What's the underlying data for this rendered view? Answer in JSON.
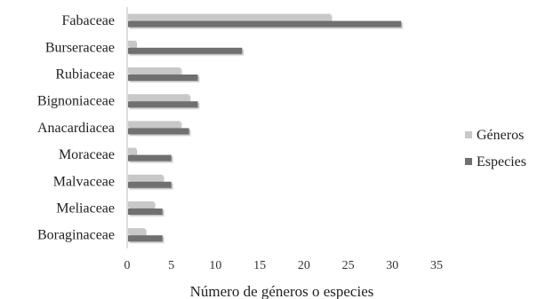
{
  "chart_data": {
    "type": "bar",
    "orientation": "horizontal",
    "categories": [
      "Fabaceae",
      "Burseraceae",
      "Rubiaceae",
      "Bignoniaceae",
      "Anacardiacea",
      "Moraceae",
      "Malvaceae",
      "Meliaceae",
      "Boraginaceae"
    ],
    "series": [
      {
        "name": "Géneros",
        "color": "#c8c8c8",
        "values": [
          23,
          1,
          6,
          7,
          6,
          1,
          4,
          3,
          2
        ]
      },
      {
        "name": "Especies",
        "color": "#707070",
        "values": [
          31,
          13,
          8,
          8,
          7,
          5,
          5,
          4,
          4
        ]
      }
    ],
    "xlabel": "Número de géneros o especies",
    "ylabel": "",
    "title": "",
    "xlim": [
      0,
      35
    ],
    "xticks": [
      0,
      5,
      10,
      15,
      20,
      25,
      30,
      35
    ],
    "grid": false,
    "legend_position": "right"
  }
}
